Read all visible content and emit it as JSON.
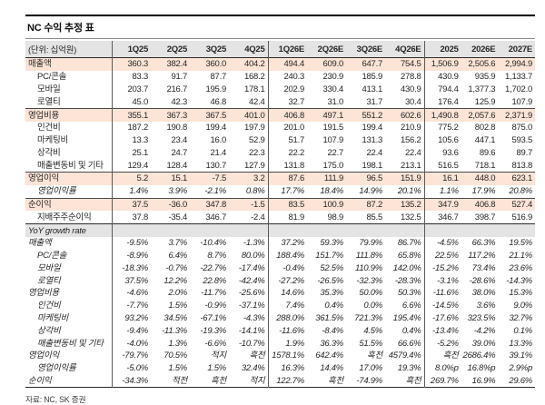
{
  "title": "NC 수익 추정 표",
  "source": "자료: NC, SK 증권",
  "colors": {
    "highlight_row": "#fce4d6",
    "header_row": "#e4e4e4",
    "border": "#2a2a2a"
  },
  "table": {
    "unit_label": "(단위: 십억원)",
    "columns": [
      "1Q25",
      "2Q25",
      "3Q25",
      "4Q25",
      "1Q26E",
      "2Q26E",
      "3Q26E",
      "4Q26E",
      "2025",
      "2026E",
      "2027E"
    ],
    "rows": [
      {
        "label": "매출액",
        "highlight": true,
        "values": [
          "360.3",
          "382.4",
          "360.0",
          "404.2",
          "494.4",
          "609.0",
          "647.7",
          "754.5",
          "1,506.9",
          "2,505.6",
          "2,994.9"
        ]
      },
      {
        "label": "PC/콘솔",
        "indent": true,
        "values": [
          "83.3",
          "91.7",
          "87.7",
          "168.2",
          "240.3",
          "230.9",
          "185.9",
          "278.8",
          "430.9",
          "935.9",
          "1,133.7"
        ]
      },
      {
        "label": "모바일",
        "indent": true,
        "values": [
          "203.7",
          "216.7",
          "195.9",
          "178.1",
          "202.9",
          "330.4",
          "413.1",
          "430.9",
          "794.4",
          "1,377.3",
          "1,702.0"
        ]
      },
      {
        "label": "로열티",
        "indent": true,
        "values": [
          "45.0",
          "42.3",
          "46.8",
          "42.4",
          "32.7",
          "31.0",
          "31.7",
          "30.4",
          "176.4",
          "125.9",
          "107.9"
        ]
      },
      {
        "label": "영업비용",
        "highlight": true,
        "topline": true,
        "values": [
          "355.1",
          "367.3",
          "367.5",
          "401.0",
          "406.8",
          "497.1",
          "551.2",
          "602.6",
          "1,490.8",
          "2,057.6",
          "2,371.9"
        ]
      },
      {
        "label": "인건비",
        "indent": true,
        "values": [
          "187.2",
          "190.8",
          "199.4",
          "197.9",
          "201.0",
          "191.5",
          "199.4",
          "210.9",
          "775.2",
          "802.8",
          "875.0"
        ]
      },
      {
        "label": "마케팅비",
        "indent": true,
        "values": [
          "13.3",
          "23.4",
          "16.0",
          "52.9",
          "51.7",
          "107.9",
          "131.3",
          "156.2",
          "105.6",
          "447.1",
          "593.5"
        ]
      },
      {
        "label": "상각비",
        "indent": true,
        "values": [
          "25.1",
          "24.7",
          "21.4",
          "22.3",
          "22.2",
          "22.7",
          "22.4",
          "22.4",
          "93.6",
          "89.6",
          "89.7"
        ]
      },
      {
        "label": "매출변동비 및 기타",
        "indent": true,
        "values": [
          "129.4",
          "128.4",
          "130.7",
          "127.9",
          "131.8",
          "175.0",
          "198.1",
          "213.1",
          "516.5",
          "718.1",
          "813.8"
        ]
      },
      {
        "label": "영업이익",
        "highlight": true,
        "topline": true,
        "values": [
          "5.2",
          "15.1",
          "-7.5",
          "3.2",
          "87.6",
          "111.9",
          "96.5",
          "151.9",
          "16.1",
          "448.0",
          "623.1"
        ]
      },
      {
        "label": "영업이익률",
        "indent": true,
        "italic": true,
        "values": [
          "1.4%",
          "3.9%",
          "-2.1%",
          "0.8%",
          "17.7%",
          "18.4%",
          "14.9%",
          "20.1%",
          "1.1%",
          "17.9%",
          "20.8%"
        ]
      },
      {
        "label": "순이익",
        "highlight": true,
        "topline": true,
        "values": [
          "37.5",
          "-36.0",
          "347.8",
          "-1.5",
          "83.5",
          "100.9",
          "87.2",
          "135.2",
          "347.9",
          "406.8",
          "527.4"
        ]
      },
      {
        "label": "지배주주순이익",
        "indent": true,
        "values": [
          "37.8",
          "-35.4",
          "346.7",
          "-2.4",
          "81.9",
          "98.9",
          "85.5",
          "132.5",
          "346.7",
          "398.7",
          "516.9"
        ]
      },
      {
        "label": "YoY growth rate",
        "section": true,
        "italic": true,
        "values": [
          "",
          "",
          "",
          "",
          "",
          "",
          "",
          "",
          "",
          "",
          ""
        ]
      },
      {
        "label": "매출액",
        "italic": true,
        "values": [
          "-9.5%",
          "3.7%",
          "-10.4%",
          "-1.3%",
          "37.2%",
          "59.3%",
          "79.9%",
          "86.7%",
          "-4.5%",
          "66.3%",
          "19.5%"
        ]
      },
      {
        "label": "PC/콘솔",
        "indent": true,
        "italic": true,
        "values": [
          "-8.9%",
          "6.4%",
          "8.7%",
          "80.0%",
          "188.4%",
          "151.7%",
          "111.8%",
          "65.8%",
          "22.5%",
          "117.2%",
          "21.1%"
        ]
      },
      {
        "label": "모바일",
        "indent": true,
        "italic": true,
        "values": [
          "-18.3%",
          "-0.7%",
          "-22.7%",
          "-17.4%",
          "-0.4%",
          "52.5%",
          "110.9%",
          "142.0%",
          "-15.2%",
          "73.4%",
          "23.6%"
        ]
      },
      {
        "label": "로열티",
        "indent": true,
        "italic": true,
        "values": [
          "37.5%",
          "12.2%",
          "22.8%",
          "-42.4%",
          "-27.2%",
          "-26.5%",
          "-32.3%",
          "-28.3%",
          "-3.1%",
          "-28.6%",
          "-14.3%"
        ]
      },
      {
        "label": "영업비용",
        "italic": true,
        "values": [
          "-4.6%",
          "2.0%",
          "-11.7%",
          "-25.6%",
          "14.6%",
          "35.3%",
          "50.0%",
          "50.3%",
          "-11.6%",
          "38.0%",
          "15.3%"
        ]
      },
      {
        "label": "인건비",
        "indent": true,
        "italic": true,
        "values": [
          "-7.7%",
          "1.5%",
          "-0.9%",
          "-37.1%",
          "7.4%",
          "0.4%",
          "0.0%",
          "6.6%",
          "-14.5%",
          "3.6%",
          "9.0%"
        ]
      },
      {
        "label": "마케팅비",
        "indent": true,
        "italic": true,
        "values": [
          "93.2%",
          "34.5%",
          "-67.1%",
          "-4.3%",
          "288.0%",
          "361.5%",
          "721.3%",
          "195.4%",
          "-17.6%",
          "323.5%",
          "32.7%"
        ]
      },
      {
        "label": "상각비",
        "indent": true,
        "italic": true,
        "values": [
          "-9.4%",
          "-11.3%",
          "-19.3%",
          "-14.1%",
          "-11.6%",
          "-8.4%",
          "4.5%",
          "0.4%",
          "-13.4%",
          "-4.2%",
          "0.1%"
        ]
      },
      {
        "label": "매출변동비 및 기타",
        "indent": true,
        "italic": true,
        "values": [
          "-4.0%",
          "1.3%",
          "-6.6%",
          "-10.7%",
          "1.9%",
          "36.3%",
          "51.5%",
          "66.6%",
          "-5.2%",
          "39.0%",
          "13.3%"
        ]
      },
      {
        "label": "영업이익",
        "italic": true,
        "values": [
          "-79.7%",
          "70.5%",
          "적지",
          "흑전",
          "1578.1%",
          "642.4%",
          "흑전",
          "4579.4%",
          "흑전",
          "2686.4%",
          "39.1%"
        ]
      },
      {
        "label": "영업이익률",
        "indent": true,
        "italic": true,
        "values": [
          "-5.0%",
          "1.5%",
          "1.5%",
          "32.4%",
          "16.3%",
          "14.4%",
          "17.0%",
          "19.3%",
          "8.0%p",
          "16.8%p",
          "2.9%p"
        ]
      },
      {
        "label": "순이익",
        "italic": true,
        "values": [
          "-34.3%",
          "적전",
          "흑전",
          "적지",
          "122.7%",
          "흑전",
          "-74.9%",
          "흑전",
          "269.7%",
          "16.9%",
          "29.6%"
        ]
      }
    ]
  }
}
